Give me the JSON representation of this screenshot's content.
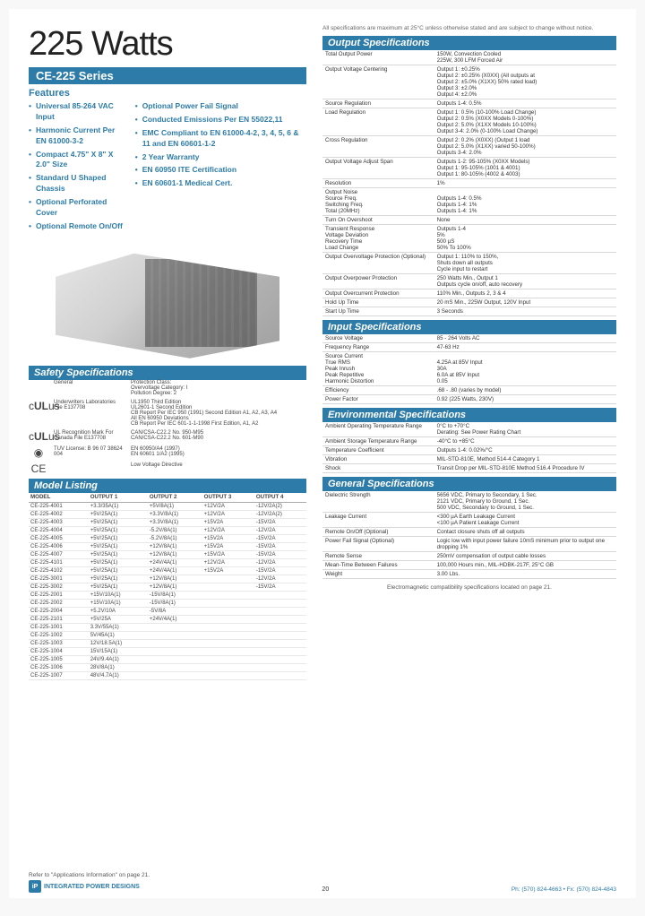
{
  "header": {
    "title": "225 Watts",
    "series": "CE-225 Series"
  },
  "features": {
    "heading": "Features",
    "left": [
      "Universal 85-264 VAC Input",
      "Harmonic Current Per EN 61000-3-2",
      "Compact 4.75\" X 8\" X 2.0\" Size",
      "Standard U Shaped Chassis",
      "Optional Perforated Cover",
      "Optional Remote On/Off"
    ],
    "right": [
      "Optional Power Fail Signal",
      "Conducted Emissions Per EN 55022,11",
      "EMC Compliant to EN 61000-4-2, 3, 4, 5, 6 & 11 and EN 60601-1-2",
      "2 Year Warranty",
      "EN 60950 ITE Certification",
      "EN 60601-1 Medical Cert."
    ]
  },
  "safety": {
    "heading": "Safety Specifications",
    "general_label": "General",
    "general_text": "Protection Class:\nOvervoltage Category: I\nPollution Degree: 2",
    "rows": [
      {
        "icon": "cULus",
        "label": "Underwriters Laboratories File E137708",
        "text": "UL1950 Third Edition\nUL2601-1 Second Edition\nCB Report Per IEC 950 (1991) Second Edition A1, A2, A3, A4\nAll EN 60950 Deviations\nCB Report Per IEC 601-1-1-1998 First Edition, A1, A2"
      },
      {
        "icon": "cULus",
        "label": "UL Recognition Mark For Canada File E137708",
        "text": "CAN/CSA-C22.2 No. 950-M95\nCAN/CSA-C22.2 No. 601-M90"
      },
      {
        "icon": "TUV",
        "label": "TUV License: B 96 07 38624 004",
        "text": "EN 60950/A4 (1997)\nEN 60601 1/A2 (1995)"
      },
      {
        "icon": "CE",
        "label": "",
        "text": "Low Voltage Directive"
      }
    ]
  },
  "models": {
    "heading": "Model Listing",
    "columns": [
      "MODEL",
      "OUTPUT 1",
      "OUTPUT 2",
      "OUTPUT 3",
      "OUTPUT 4"
    ],
    "rows": [
      [
        "CE-225-4001",
        "+3.3/35A(1)",
        "+5V/8A(1)",
        "+12V/2A",
        "-12V/2A(2)"
      ],
      [
        "CE-225-4002",
        "+5V/25A(1)",
        "+3.3V/8A(1)",
        "+12V/2A",
        "-12V/2A(2)"
      ],
      [
        "CE-225-4003",
        "+5V/25A(1)",
        "+3.3V/8A(1)",
        "+15V2A",
        "-15V/2A"
      ],
      [
        "CE-225-4004",
        "+5V/25A(1)",
        "-5.2V/8A(1)",
        "+12V/2A",
        "-12V/2A"
      ],
      [
        "CE-225-4005",
        "+5V/25A(1)",
        "-5.2V/8A(1)",
        "+15V2A",
        "-15V/2A"
      ],
      [
        "CE-225-4006",
        "+5V/25A(1)",
        "+12V/8A(1)",
        "+15V2A",
        "-15V/2A"
      ],
      [
        "CE-225-4007",
        "+5V/25A(1)",
        "+12V/8A(1)",
        "+15V/2A",
        "-15V/2A"
      ],
      [
        "CE-225-4101",
        "+5V/25A(1)",
        "+24V/4A(1)",
        "+12V/2A",
        "-12V/2A"
      ],
      [
        "CE-225-4102",
        "+5V/25A(1)",
        "+24V/4A(1)",
        "+15V2A",
        "-15V/2A"
      ],
      [
        "CE-225-3001",
        "+5V/25A(1)",
        "+12V/8A(1)",
        "",
        "-12V/2A"
      ],
      [
        "CE-225-3002",
        "+5V/25A(1)",
        "+12V/8A(1)",
        "",
        "-15V/2A"
      ],
      [
        "CE-225-2001",
        "+15V/10A(1)",
        "-15V/8A(1)",
        "",
        ""
      ],
      [
        "CE-225-2002",
        "+15V/10A(1)",
        "-15V/8A(1)",
        "",
        ""
      ],
      [
        "CE-225-2004",
        "+5.2V/10A",
        "-5V/8A",
        "",
        ""
      ],
      [
        "CE-225-2101",
        "+5V/25A",
        "+24V/4A(1)",
        "",
        ""
      ],
      [
        "CE-225-1001",
        "3.3V/55A(1)",
        "",
        "",
        ""
      ],
      [
        "CE-225-1002",
        "5V/45A(1)",
        "",
        "",
        ""
      ],
      [
        "CE-225-1003",
        "12V/18.5A(1)",
        "",
        "",
        ""
      ],
      [
        "CE-225-1004",
        "15V/15A(1)",
        "",
        "",
        ""
      ],
      [
        "CE-225-1005",
        "24V/9.4A(1)",
        "",
        "",
        ""
      ],
      [
        "CE-225-1006",
        "28V/8A(1)",
        "",
        "",
        ""
      ],
      [
        "CE-225-1007",
        "48V/4.7A(1)",
        "",
        "",
        ""
      ]
    ]
  },
  "note_top": "All specifications are maximum at 25°C unless otherwise stated and are subject to change without notice.",
  "output_specs": {
    "heading": "Output Specifications",
    "rows": [
      [
        "Total Output Power",
        "150W, Convection Cooled\n225W, 300 LFM Forced Air"
      ],
      [
        "Output Voltage Centering",
        "Output 1: ±0.25%\nOutput 2: ±0.25% (X0XX)   (All outputs at\nOutput 2: ±5.0% (X1XX)   50% rated load)\nOutput 3: ±2.0%\nOutput 4: ±2.0%"
      ],
      [
        "Source Regulation",
        "Outputs 1-4: 0.5%"
      ],
      [
        "Load Regulation",
        "Output 1: 0.5% (10-100% Load Change)\nOutput 2: 0.5% (X0XX Models 0-100%)\nOutput 2: 5.0% (X1XX Models 10-100%)\nOutput 3-4: 2.0% (0-100% Load Change)"
      ],
      [
        "Cross Regulation",
        "Output 2: 0.2% (X0XX)   (Output 1 load\nOutput 2: 5.0% (X1XX)   varied 50-100%)\nOutputs 3-4: 2.0%"
      ],
      [
        "Output Voltage Adjust Span",
        "Outputs 1-2: 95-105% (X0XX Models)\nOutput 1: 95-105% (1001 & 4001)\nOutput 1: 80-105% (4002 & 4003)"
      ],
      [
        "Resolution",
        "1%"
      ],
      [
        "Output Noise\n  Source Freq.\n  Switching Freq.\n  Total (20MHz)",
        "\nOutputs 1-4: 0.5%\nOutputs 1-4: 1%\nOutputs 1-4: 1%"
      ],
      [
        "Turn On Overshoot",
        "None"
      ],
      [
        "Transient Response\n  Voltage Deviation\n  Recovery Time\n  Load Change",
        "Outputs 1-4\n5%\n500 µS\n50% To 100%"
      ],
      [
        "Output Overvoltage Protection (Optional)",
        "Output 1: 110% to 150%,\nShuts down all outputs\nCycle input to restart"
      ],
      [
        "Output Overpower Protection",
        "250 Watts Min., Output 1\nOutputs cycle on/off, auto recovery"
      ],
      [
        "Output Overcurrent Protection",
        "110% Min., Outputs 2, 3 & 4"
      ],
      [
        "Hold Up Time",
        "20 mS Min., 225W Output, 120V Input"
      ],
      [
        "Start Up Time",
        "3 Seconds"
      ]
    ]
  },
  "input_specs": {
    "heading": "Input Specifications",
    "rows": [
      [
        "Source Voltage",
        "85 - 264 Volts AC"
      ],
      [
        "Frequency Range",
        "47-63 Hz"
      ],
      [
        "Source Current\n  True RMS\n  Peak Inrush\n  Peak Repetitive\n  Harmonic Distortion",
        "\n4.25A at 85V Input\n30A\n6.0A at 85V Input\n0.05"
      ],
      [
        "Efficiency",
        ".68 - .80 (varies by model)"
      ],
      [
        "Power Factor",
        "0.92 (225 Watts, 230V)"
      ]
    ]
  },
  "env_specs": {
    "heading": "Environmental Specifications",
    "rows": [
      [
        "Ambient Operating Temperature Range",
        "0°C to +70°C\nDerating: See Power Rating Chart"
      ],
      [
        "Ambient Storage Temperature Range",
        "-40°C to +85°C"
      ],
      [
        "Temperature Coefficient",
        "Outputs 1-4: 0.02%/°C"
      ],
      [
        "Vibration",
        "MIL-STD-810E, Method 514-4 Category 1"
      ],
      [
        "Shock",
        "Transit Drop per MIL-STD-810E Method 516.4 Procedure IV"
      ]
    ]
  },
  "gen_specs": {
    "heading": "General Specifications",
    "rows": [
      [
        "Dielectric Strength",
        "5656 VDC, Primary to Secondary, 1 Sec.\n2121 VDC, Primary to Ground, 1 Sec.\n500 VDC, Secondary to Ground, 1 Sec."
      ],
      [
        "Leakage Current",
        "<300 µA Earth Leakage Current\n<100 µA Patient Leakage Current"
      ],
      [
        "Remote On/Off (Optional)",
        "Contact closure shuts off all outputs"
      ],
      [
        "Power Fail Signal (Optional)",
        "Logic low with input power failure 10mS minimum prior to output one dropping 1%"
      ],
      [
        "Remote Sense",
        "250mV compensation of output cable losses"
      ],
      [
        "Mean-Time Between Failures",
        "100,000 Hours min., MIL-HDBK-217F, 25°C GB"
      ],
      [
        "Weight",
        "3.00 Lbs."
      ]
    ]
  },
  "em_note": "Electromagnetic compatibility specifications located on page 21.",
  "footer": {
    "ref": "Refer to \"Applications Information\" on page 21.",
    "logo": "INTEGRATED POWER DESIGNS",
    "phone": "Ph: (570) 824-4663 • Fx: (570) 824-4843",
    "page": "20"
  },
  "style": {
    "accent": "#2c7ba8",
    "text": "#333333",
    "border": "#d8d8d8",
    "bg": "#ffffff",
    "title_fontsize": 38,
    "body_fontsize": 6.2
  }
}
